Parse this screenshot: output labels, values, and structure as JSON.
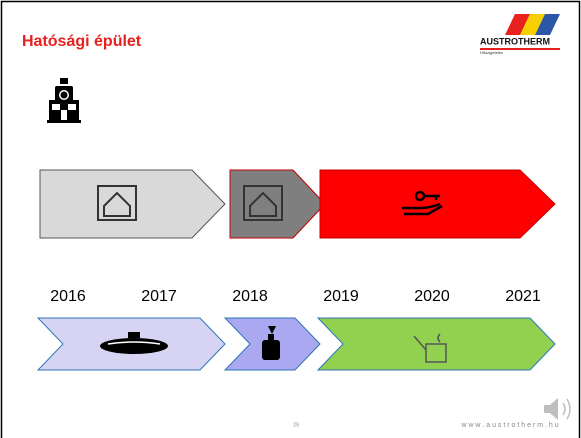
{
  "header": {
    "title": "Hatósági épület",
    "logo": {
      "name": "AUSTROTHERM",
      "tagline": "Hőszigetelés"
    }
  },
  "timeline": {
    "years": [
      "2016",
      "2017",
      "2018",
      "2019",
      "2020",
      "2021"
    ]
  },
  "footer": {
    "page_number": "29",
    "website": "w w w . a u s t r o t h e r m . h u"
  }
}
